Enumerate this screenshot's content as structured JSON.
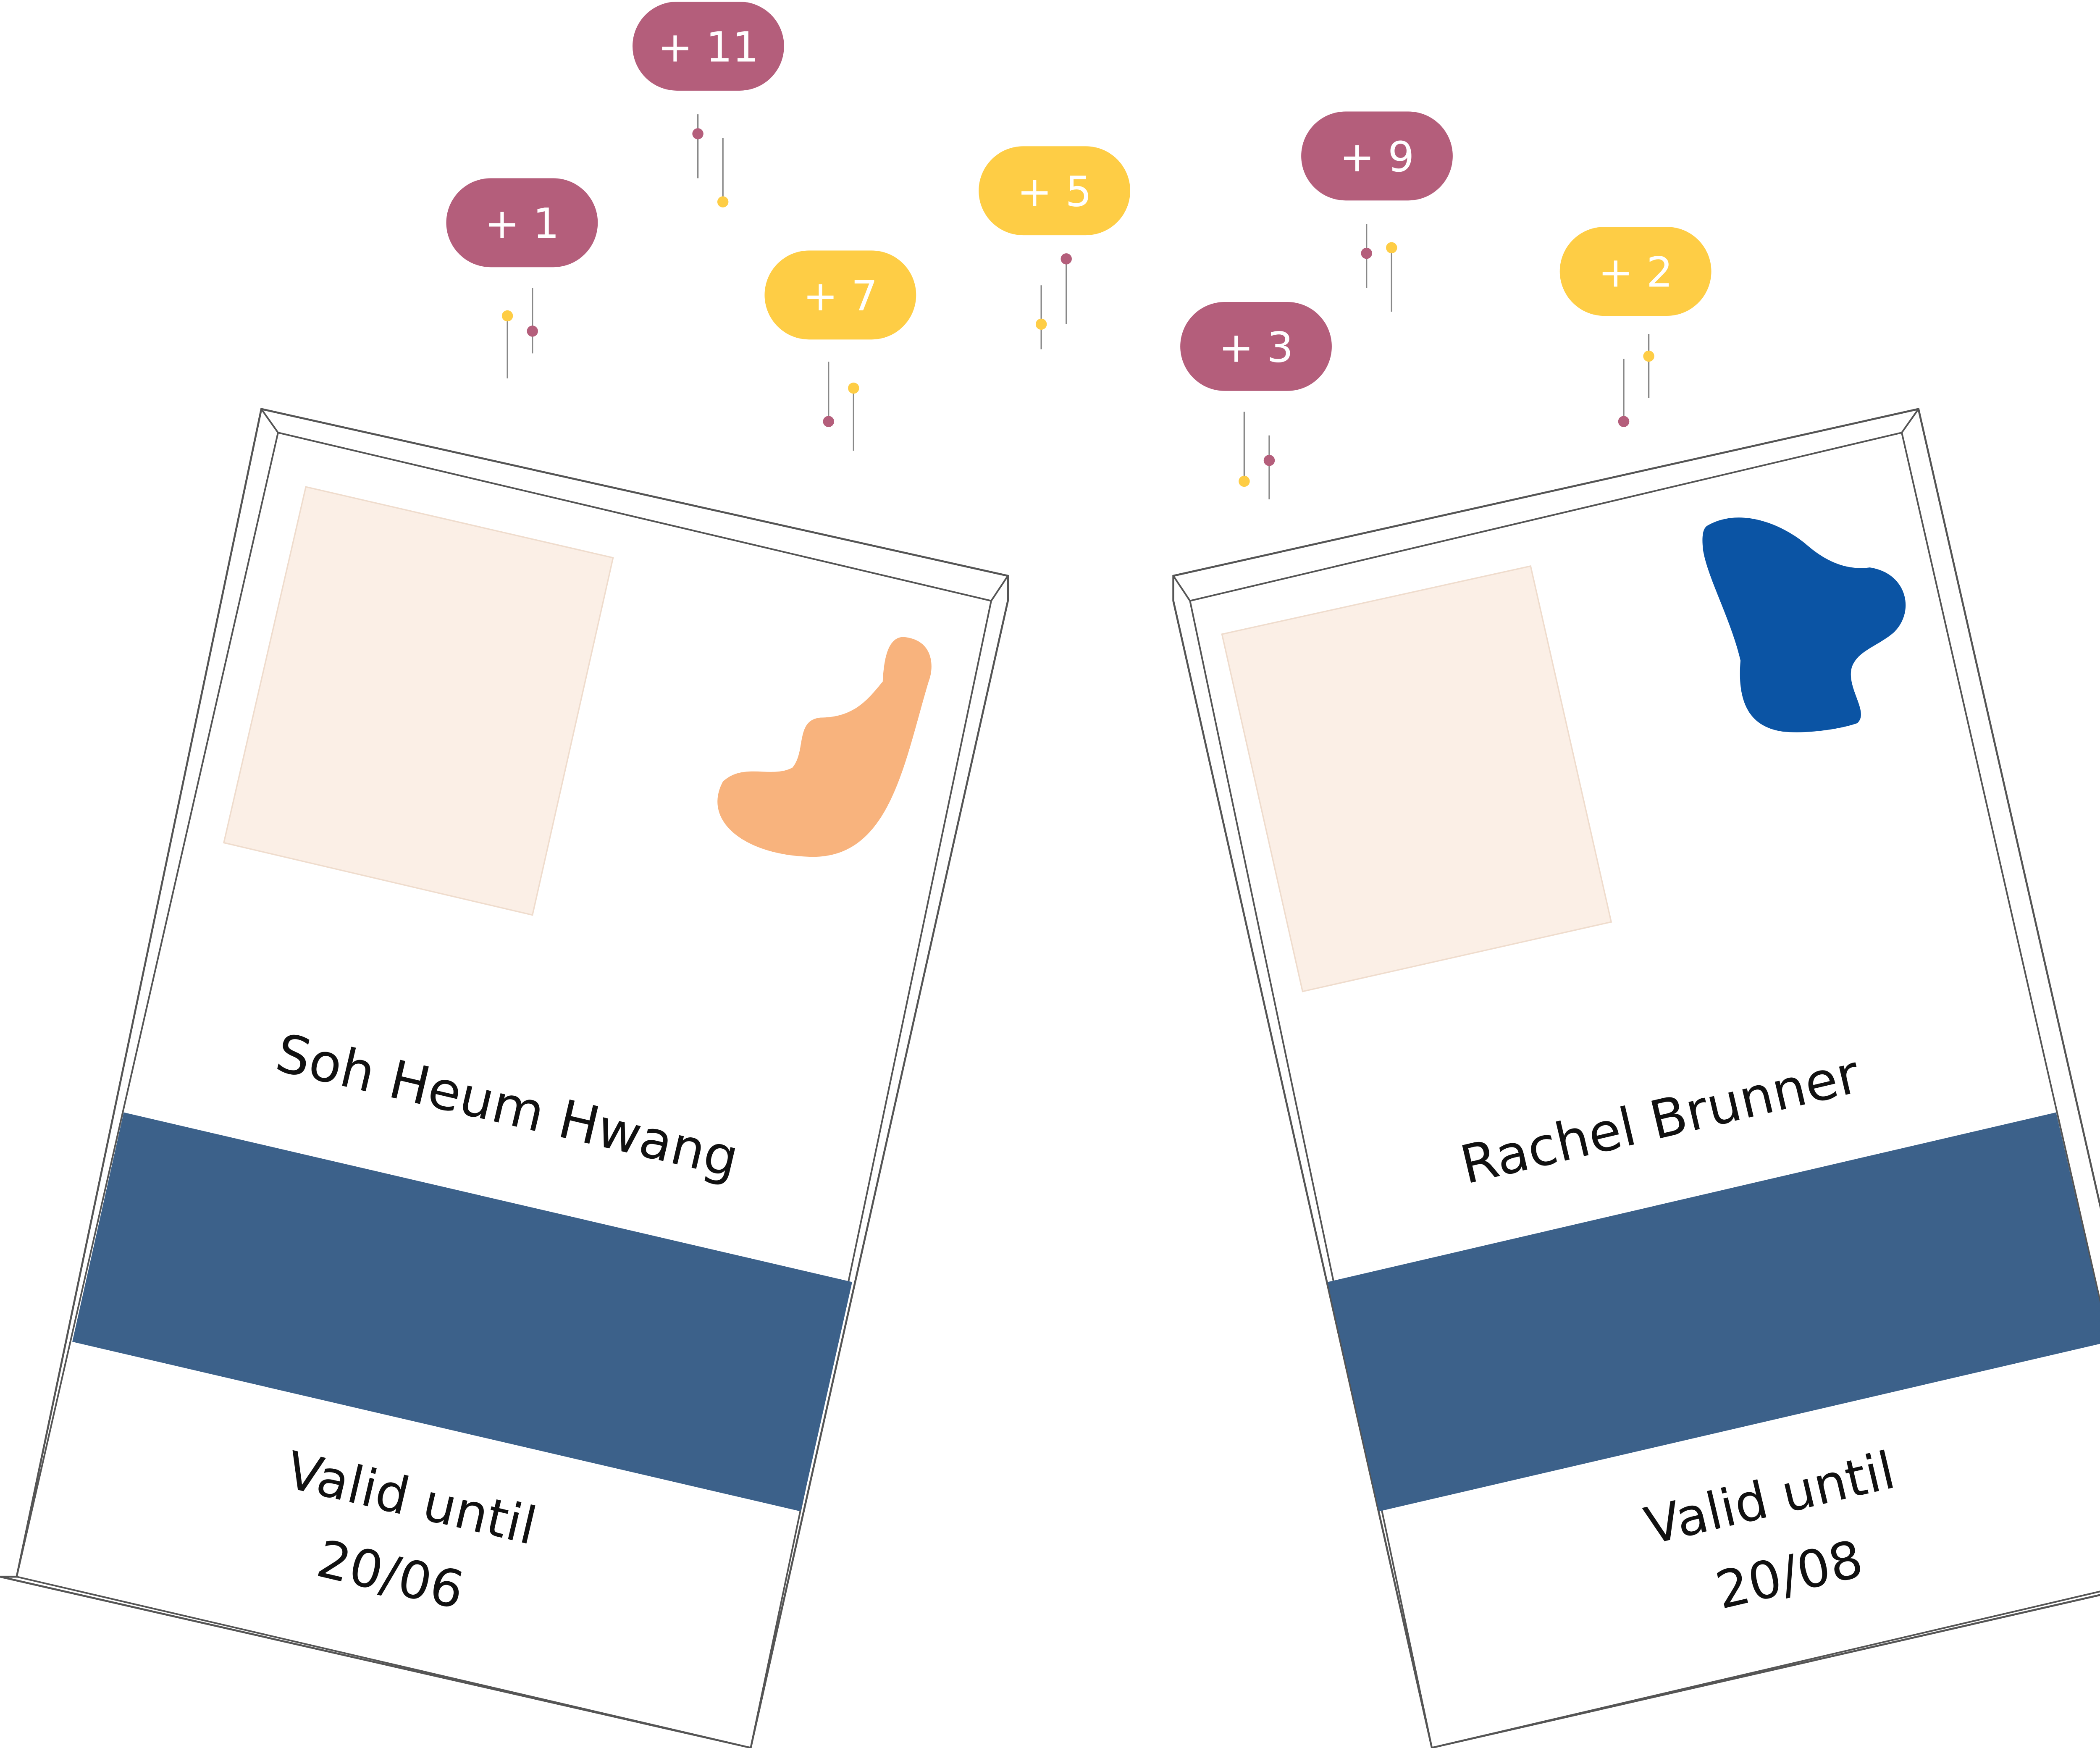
{
  "colors": {
    "badge_plum": "#b45e7b",
    "badge_yellow": "#fecd45",
    "band_blue": "#3c618a",
    "photo_placeholder": "#fbefe6",
    "blob_orange": "#f8b37d",
    "blob_blue": "#0b54a4",
    "outline": "#555555"
  },
  "badges": [
    {
      "label": "+ 11",
      "color": "plum"
    },
    {
      "label": "+ 1",
      "color": "plum"
    },
    {
      "label": "+ 7",
      "color": "yellow"
    },
    {
      "label": "+ 5",
      "color": "yellow"
    },
    {
      "label": "+ 9",
      "color": "plum"
    },
    {
      "label": "+ 3",
      "color": "plum"
    },
    {
      "label": "+ 2",
      "color": "yellow"
    }
  ],
  "cards": [
    {
      "name": "Soh Heum Hwang",
      "valid_label": "Valid until",
      "valid_date": "20/06",
      "decor": "orange-blob"
    },
    {
      "name": "Rachel Brunner",
      "valid_label": "Valid until",
      "valid_date": "20/08",
      "decor": "blue-blob"
    }
  ]
}
